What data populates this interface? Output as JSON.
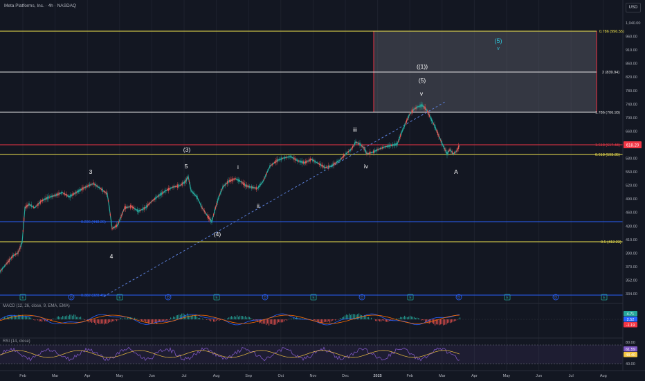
{
  "header": {
    "title": "Meta Platforms, Inc. · 4h · NASDAQ",
    "currency_button": "USD"
  },
  "price_axis": {
    "ticks": [
      "1,040.00",
      "960.00",
      "910.00",
      "860.00",
      "820.00",
      "780.00",
      "740.00",
      "700.00",
      "660.00",
      "620.00",
      "580.00",
      "550.00",
      "520.00",
      "490.00",
      "460.00",
      "430.00",
      "410.00",
      "390.00",
      "370.00",
      "352.00",
      "334.00"
    ],
    "current_price": "618.20",
    "current_price_color": "#f23645"
  },
  "time_axis": {
    "labels": [
      "Feb",
      "Mar",
      "Apr",
      "May",
      "Jun",
      "Jul",
      "Aug",
      "Sep",
      "Oct",
      "Nov",
      "Dec",
      "2025",
      "Feb",
      "Mar",
      "Apr",
      "May",
      "Jun",
      "Jul",
      "Aug"
    ]
  },
  "fib_levels": {
    "f0786": "0.786 (996.55)",
    "f2": "2 (839.94)",
    "f1786": "1.786 (706.93)",
    "f1618": "1.618 (617.44)",
    "f0618": "0.618 (593.35)",
    "f05": "0.5 (412.23)",
    "f0236": "0.236 (448.26)",
    "f0382": "0.382 (328.45)"
  },
  "wave_labels": {
    "w3": "3",
    "w4": "4",
    "w5": "5",
    "wp3": "(3)",
    "wp4": "(4)",
    "wi": "i",
    "wii": "ii",
    "wiii": "iii",
    "wiv": "iv",
    "wv": "v",
    "wpp1": "((1))",
    "wp5": "(5)",
    "wA": "A",
    "target_p5": "(5)",
    "target_v": "v"
  },
  "event_markers": [
    "E",
    "D",
    "E",
    "D",
    "E",
    "D",
    "E",
    "D",
    "E",
    "D",
    "E",
    "D",
    "E"
  ],
  "macd": {
    "legend": "MACD (12, 26, close, 9, EMA, EMA)",
    "values": [
      "4.71",
      "2.52",
      "-1.19"
    ],
    "colors": [
      "#26a69a",
      "#2962ff",
      "#f23645"
    ]
  },
  "rsi": {
    "legend": "RSI (14, close)",
    "ticks": [
      "80.00",
      "40.00"
    ],
    "values": [
      "61.59",
      "48.40"
    ],
    "colors": [
      "#7e57c2",
      "#f5c542"
    ]
  },
  "colors": {
    "background": "#131722",
    "up": "#26a69a",
    "down": "#ef5350",
    "fib_yellow": "#f0e44d",
    "fib_white": "#e6e6e6",
    "fib_red": "#f23645",
    "fib_blue": "#2962ff",
    "target_cyan": "#2ec4d9"
  }
}
